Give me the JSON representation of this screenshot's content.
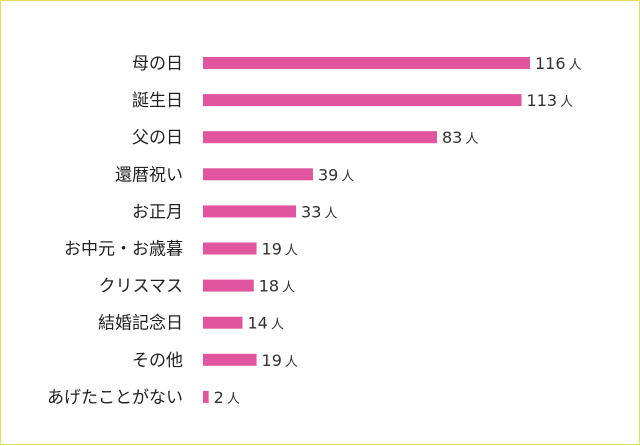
{
  "chart_data": {
    "type": "bar",
    "orientation": "horizontal",
    "categories": [
      "母の日",
      "誕生日",
      "父の日",
      "還暦祝い",
      "お正月",
      "お中元・お歳暮",
      "クリスマス",
      "結婚記念日",
      "その他",
      "あげたことがない"
    ],
    "values": [
      116,
      113,
      83,
      39,
      33,
      19,
      18,
      14,
      19,
      2
    ],
    "unit": "人",
    "bar_color": "#e0559e",
    "border_color": "#e6df5a",
    "xlim": [
      0,
      116
    ],
    "grid": false,
    "legend": "none"
  }
}
